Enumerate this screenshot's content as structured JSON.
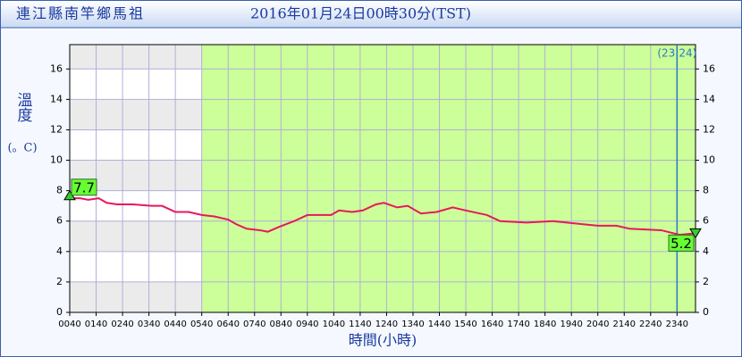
{
  "chart_data": {
    "type": "line",
    "title": "連江縣南竿鄉馬祖",
    "subtitle": "2016年01月24日00時30分(TST)",
    "y_label": "溫度",
    "y_unit": "(。C)",
    "x_label": "時間(小時)",
    "color": "#e8175d",
    "x": [
      0,
      0.4,
      0.7,
      1.1,
      1.4,
      1.8,
      2.4,
      3.1,
      3.5,
      4.0,
      4.5,
      5.0,
      5.5,
      6.0,
      6.3,
      6.7,
      7.2,
      7.5,
      7.9,
      8.5,
      9.0,
      9.9,
      10.2,
      10.7,
      11.1,
      11.6,
      11.9,
      12.4,
      12.8,
      13.3,
      13.9,
      14.5,
      15.0,
      15.8,
      16.3,
      17.3,
      18.3,
      19.4,
      20.0,
      20.7,
      21.2,
      22.4,
      23.1,
      23.7
    ],
    "values": [
      7.5,
      7.5,
      7.4,
      7.5,
      7.2,
      7.1,
      7.1,
      7.0,
      7.0,
      6.6,
      6.6,
      6.4,
      6.3,
      6.1,
      5.8,
      5.5,
      5.4,
      5.3,
      5.6,
      6.0,
      6.4,
      6.4,
      6.7,
      6.6,
      6.7,
      7.1,
      7.2,
      6.9,
      7.0,
      6.5,
      6.6,
      6.9,
      6.7,
      6.4,
      6.0,
      5.9,
      6.0,
      5.8,
      5.7,
      5.7,
      5.5,
      5.4,
      5.1,
      5.2
    ],
    "xlim": [
      0,
      23.7
    ],
    "xticks": [
      {
        "value": 0,
        "label": "0040"
      },
      {
        "value": 1,
        "label": "0140"
      },
      {
        "value": 2,
        "label": "0240"
      },
      {
        "value": 3,
        "label": "0340"
      },
      {
        "value": 4,
        "label": "0440"
      },
      {
        "value": 5,
        "label": "0540"
      },
      {
        "value": 6,
        "label": "0640"
      },
      {
        "value": 7,
        "label": "0740"
      },
      {
        "value": 8,
        "label": "0840"
      },
      {
        "value": 9,
        "label": "0940"
      },
      {
        "value": 10,
        "label": "1040"
      },
      {
        "value": 11,
        "label": "1140"
      },
      {
        "value": 12,
        "label": "1240"
      },
      {
        "value": 13,
        "label": "1340"
      },
      {
        "value": 14,
        "label": "1440"
      },
      {
        "value": 15,
        "label": "1540"
      },
      {
        "value": 16,
        "label": "1640"
      },
      {
        "value": 17,
        "label": "1740"
      },
      {
        "value": 18,
        "label": "1840"
      },
      {
        "value": 19,
        "label": "1940"
      },
      {
        "value": 20,
        "label": "2040"
      },
      {
        "value": 21,
        "label": "2140"
      },
      {
        "value": 22,
        "label": "2240"
      },
      {
        "value": 23,
        "label": "2340"
      }
    ],
    "ylim": [
      0,
      17.6
    ],
    "yticks": [
      0,
      2,
      4,
      6,
      8,
      10,
      12,
      14,
      16
    ],
    "grid": true,
    "daylight_start": 5.0,
    "day_boundary": {
      "x": 23,
      "label": "(23|24)"
    },
    "max_marker": {
      "x": 0,
      "value": 7.7
    },
    "min_marker": {
      "x": 23.7,
      "value": 5.2
    }
  }
}
